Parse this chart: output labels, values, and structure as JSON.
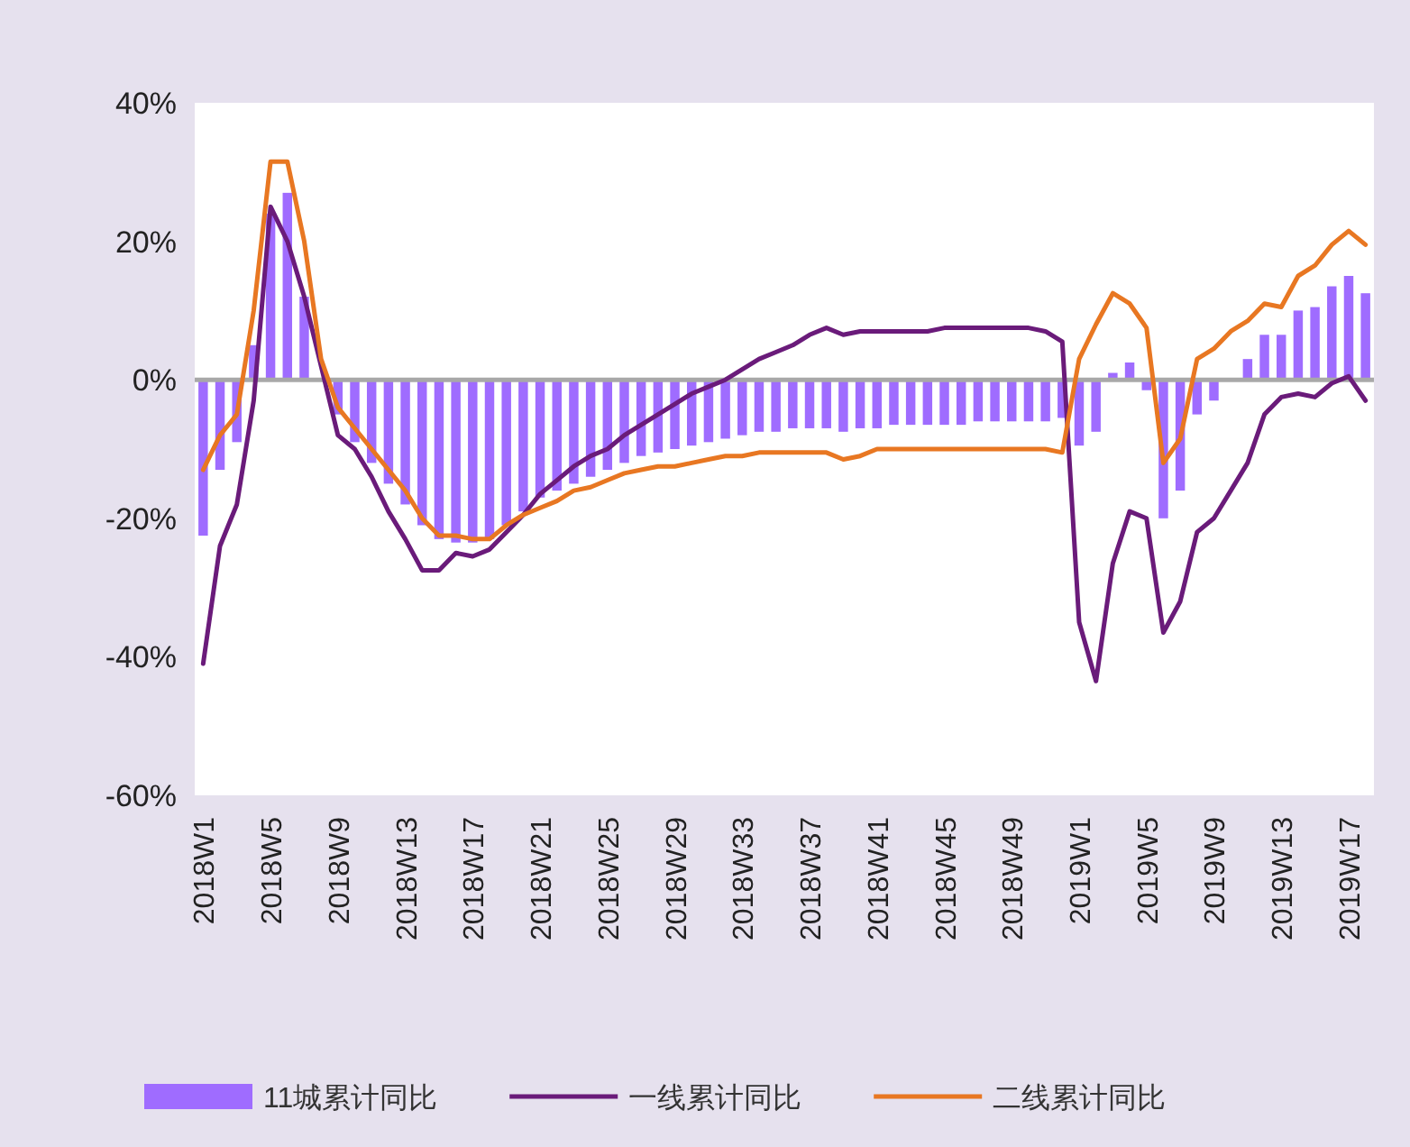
{
  "chart_data": {
    "type": "bar",
    "categories": [
      "2018W1",
      null,
      null,
      null,
      "2018W5",
      null,
      null,
      null,
      "2018W9",
      null,
      null,
      null,
      "2018W13",
      null,
      null,
      null,
      "2018W17",
      null,
      null,
      null,
      "2018W21",
      null,
      null,
      null,
      "2018W25",
      null,
      null,
      null,
      "2018W29",
      null,
      null,
      null,
      "2018W33",
      null,
      null,
      null,
      "2018W37",
      null,
      null,
      null,
      "2018W41",
      null,
      null,
      null,
      "2018W45",
      null,
      null,
      null,
      "2018W49",
      null,
      null,
      null,
      "2019W1",
      null,
      null,
      null,
      "2019W5",
      null,
      null,
      null,
      "2019W9",
      null,
      null,
      null,
      "2019W13",
      null,
      null,
      null,
      "2019W17",
      null
    ],
    "ylim": [
      -60,
      40
    ],
    "yticks": [
      {
        "value": -60,
        "label": "-60%"
      },
      {
        "value": -40,
        "label": "-40%"
      },
      {
        "value": -20,
        "label": "-20%"
      },
      {
        "value": 0,
        "label": "0%"
      },
      {
        "value": 20,
        "label": "20%"
      },
      {
        "value": 40,
        "label": "40%"
      }
    ],
    "legend": "bottom",
    "grid": false,
    "ref_lines": [
      {
        "axis": "y",
        "value": 0,
        "color": "#a8a8a8"
      }
    ],
    "series": [
      {
        "name": "11城累计同比",
        "color": "#9f6cff",
        "values": [
          -22.5,
          -13,
          -9,
          5,
          24,
          27,
          12,
          null,
          -5,
          -9,
          -12,
          -15,
          -18,
          -21,
          -23,
          -23.5,
          -23.5,
          -23,
          -21,
          -19,
          -17,
          -16,
          -15,
          -14,
          -13,
          -12,
          -11,
          -10.5,
          -10,
          -9.5,
          -9,
          -8.5,
          -8,
          -7.5,
          -7.5,
          -7,
          -7,
          -7,
          -7.5,
          -7,
          -7,
          -6.5,
          -6.5,
          -6.5,
          -6.5,
          -6.5,
          -6,
          -6,
          -6,
          -6,
          -6,
          -5.5,
          -9.5,
          -7.5,
          1,
          2.5,
          -1.5,
          -20,
          -16,
          -5,
          -3,
          0,
          3,
          6.5,
          6.5,
          10,
          10.5,
          13.5,
          15,
          12.5
        ]
      },
      {
        "name": "一线累计同比",
        "type": "line",
        "color": "#6a1b7a",
        "values": [
          -41,
          -24,
          -18,
          -3,
          25,
          20,
          12,
          2,
          -8,
          -10,
          -14,
          -19,
          -23,
          -27.5,
          -27.5,
          -25,
          -25.5,
          -24.5,
          -22,
          -19.5,
          -16.5,
          -14.5,
          -12.5,
          -11,
          -10,
          -8,
          -6.5,
          -5,
          -3.5,
          -2,
          -1,
          0,
          1.5,
          3,
          4,
          5,
          6.5,
          7.5,
          6.5,
          7,
          7,
          7,
          7,
          7,
          7.5,
          7.5,
          7.5,
          7.5,
          7.5,
          7.5,
          7,
          5.5,
          -35,
          -43.5,
          -26.5,
          -19,
          -20,
          -36.5,
          -32,
          -22,
          -20,
          -16,
          -12,
          -5,
          -2.5,
          -2,
          -2.5,
          -0.5,
          0.5,
          -3
        ]
      },
      {
        "name": "二线累计同比",
        "type": "line",
        "color": "#e87722",
        "values": [
          -13,
          -8,
          -5,
          10,
          31.5,
          31.5,
          20,
          3,
          -4,
          -7,
          -10,
          -13,
          -16,
          -20,
          -22.5,
          -22.5,
          -23,
          -23,
          -21,
          -19.5,
          -18.5,
          -17.5,
          -16,
          -15.5,
          -14.5,
          -13.5,
          -13,
          -12.5,
          -12.5,
          -12,
          -11.5,
          -11,
          -11,
          -10.5,
          -10.5,
          -10.5,
          -10.5,
          -10.5,
          -11.5,
          -11,
          -10,
          -10,
          -10,
          -10,
          -10,
          -10,
          -10,
          -10,
          -10,
          -10,
          -10,
          -10.5,
          3,
          8,
          12.5,
          11,
          7.5,
          -12,
          -8.5,
          3,
          4.5,
          7,
          8.5,
          11,
          10.5,
          15,
          16.5,
          19.5,
          21.5,
          19.5
        ]
      }
    ]
  }
}
